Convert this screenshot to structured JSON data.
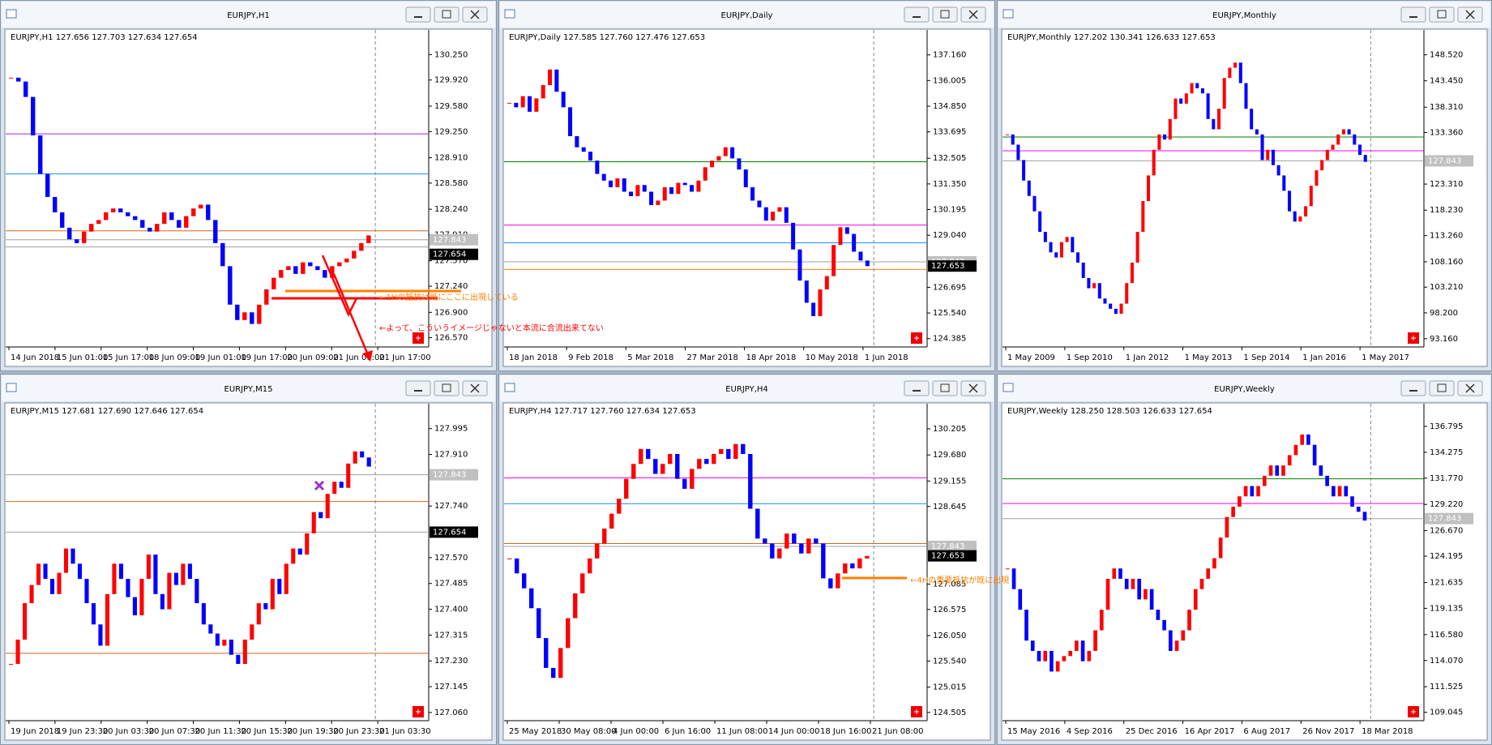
{
  "up_color": "#ff0000",
  "down_color": "#0000ff",
  "windows": [
    {
      "title": "EURJPY,H1",
      "info": "EURJPY,H1  127.656 127.703 127.634 127.654",
      "chart": {
        "type": "candlestick",
        "ylim": [
          126.45,
          130.57
        ],
        "yticks": [
          {
            "value": 130.25,
            "label": "130.250"
          },
          {
            "value": 129.92,
            "label": "129.920"
          },
          {
            "value": 129.58,
            "label": "129.580"
          },
          {
            "value": 129.25,
            "label": "129.250"
          },
          {
            "value": 128.91,
            "label": "128.910"
          },
          {
            "value": 128.58,
            "label": "128.580"
          },
          {
            "value": 128.24,
            "label": "128.240"
          },
          {
            "value": 127.91,
            "label": "127.910"
          },
          {
            "value": 127.57,
            "label": "127.570"
          },
          {
            "value": 127.24,
            "label": "127.240"
          },
          {
            "value": 126.9,
            "label": "126.900"
          },
          {
            "value": 126.57,
            "label": "126.570"
          }
        ],
        "xticks": [
          "14 Jun 2018",
          "15 Jun 01:00",
          "15 Jun 17:00",
          "18 Jun 09:00",
          "19 Jun 01:00",
          "19 Jun 17:00",
          "20 Jun 09:00",
          "21 Jun 01:00",
          "21 Jun 17:00"
        ],
        "closes": [
          129.95,
          129.9,
          129.7,
          129.2,
          128.7,
          128.4,
          128.2,
          128.0,
          127.85,
          127.8,
          127.95,
          128.05,
          128.1,
          128.2,
          128.25,
          128.2,
          128.15,
          128.1,
          128.0,
          127.95,
          128.05,
          128.2,
          128.1,
          128.0,
          128.15,
          128.25,
          128.3,
          128.1,
          127.8,
          127.5,
          127.0,
          126.8,
          126.9,
          126.75,
          127.0,
          127.2,
          127.35,
          127.45,
          127.5,
          127.4,
          127.55,
          127.5,
          127.45,
          127.35,
          127.5,
          127.55,
          127.6,
          127.7,
          127.8,
          127.9
        ],
        "levels": [
          {
            "value": 129.22,
            "color": "#a020f0"
          },
          {
            "value": 128.7,
            "color": "#1e90ff"
          },
          {
            "value": 127.96,
            "color": "#d2691e"
          },
          {
            "value": 127.843,
            "color": "#a0a0a0"
          },
          {
            "value": 127.75,
            "color": "#a0a0a0"
          }
        ],
        "price_boxes": [
          {
            "value": 127.843,
            "color": "#c0c0c0"
          },
          {
            "value": 127.654,
            "color": "#000000"
          }
        ],
        "annotations": [
          {
            "text": "←1Hの抵抗は既にここに出現している",
            "color": "#ff8000"
          },
          {
            "text": "←よって、こういうイメージじゃないと本流に合流出来てない",
            "color": "#ff0000"
          }
        ]
      }
    },
    {
      "title": "EURJPY,Daily",
      "info": "EURJPY,Daily  127.585 127.760 127.476 127.653",
      "chart": {
        "type": "candlestick",
        "ylim": [
          124.01,
          138.28
        ],
        "yticks": [
          {
            "value": 137.16,
            "label": "137.160"
          },
          136.005,
          {
            "value": 134.85,
            "label": "134.850"
          },
          133.695,
          132.505,
          {
            "value": 131.35,
            "label": "131.350"
          },
          130.195,
          {
            "value": 129.04,
            "label": "129.040"
          },
          126.695,
          {
            "value": 125.54,
            "label": "125.540"
          },
          124.385
        ],
        "xticks": [
          "18 Jan 2018",
          "9 Feb 2018",
          "5 Mar 2018",
          "27 Mar 2018",
          "18 Apr 2018",
          "10 May 2018",
          "1 Jun 2018"
        ],
        "closes": [
          135.0,
          134.8,
          135.3,
          134.6,
          135.2,
          135.8,
          136.5,
          135.5,
          134.8,
          133.5,
          133.0,
          132.8,
          132.4,
          131.8,
          131.5,
          131.2,
          131.6,
          131.0,
          130.8,
          131.3,
          131.0,
          130.4,
          130.6,
          131.2,
          130.9,
          131.4,
          131.3,
          131.0,
          131.5,
          132.1,
          132.4,
          132.6,
          133.0,
          132.5,
          132.0,
          131.2,
          130.6,
          130.3,
          129.7,
          130.1,
          130.3,
          129.6,
          128.4,
          127.0,
          126.0,
          125.4,
          126.6,
          127.2,
          128.6,
          129.4,
          129.1,
          128.3,
          127.9,
          127.65
        ],
        "levels": [
          {
            "value": 132.35,
            "color": "#008000"
          },
          {
            "value": 129.5,
            "color": "#ff00ff"
          },
          {
            "value": 128.7,
            "color": "#1e90ff"
          },
          {
            "value": 127.843,
            "color": "#a0a0a0"
          },
          {
            "value": 127.5,
            "color": "#ff8000"
          }
        ],
        "price_boxes": [
          {
            "value": 127.843,
            "color": "#c0c0c0"
          },
          {
            "value": 127.653,
            "color": "#000000"
          }
        ],
        "annotations": []
      }
    },
    {
      "title": "EURJPY,Monthly",
      "info": "EURJPY,Monthly  127.202 130.341 126.633 127.653",
      "chart": {
        "type": "candlestick",
        "ylim": [
          91.55,
          153.36
        ],
        "yticks": [
          {
            "value": 148.52,
            "label": "148.520"
          },
          {
            "value": 143.45,
            "label": "143.450"
          },
          {
            "value": 138.31,
            "label": "138.310"
          },
          {
            "value": 133.36,
            "label": "133.360"
          },
          {
            "value": 123.31,
            "label": "123.310"
          },
          {
            "value": 118.23,
            "label": "118.230"
          },
          {
            "value": 113.26,
            "label": "113.260"
          },
          {
            "value": 108.16,
            "label": "108.160"
          },
          {
            "value": 103.21,
            "label": "103.210"
          },
          {
            "value": 98.2,
            "label": "98.200"
          },
          {
            "value": 93.16,
            "label": "93.160"
          }
        ],
        "xticks": [
          "1 May 2009",
          "1 Sep 2010",
          "1 Jan 2012",
          "1 May 2013",
          "1 Sep 2014",
          "1 Jan 2016",
          "1 May 2017"
        ],
        "closes": [
          133,
          131,
          128,
          124,
          121,
          118,
          114,
          112,
          110,
          109,
          112,
          113,
          110,
          108,
          105,
          103,
          104,
          101,
          100,
          99,
          98,
          100,
          104,
          108,
          114,
          120,
          125,
          130,
          133,
          132,
          136,
          140,
          139,
          141,
          143,
          142,
          141,
          136,
          134,
          138,
          144,
          146,
          147,
          143,
          138,
          134,
          133,
          128,
          130,
          127,
          125,
          122,
          118,
          116,
          117,
          119,
          123,
          126,
          128,
          130,
          131,
          133,
          134,
          133,
          131,
          129,
          127.65
        ],
        "levels": [
          {
            "value": 132.5,
            "color": "#008000"
          },
          {
            "value": 129.8,
            "color": "#ff00ff"
          },
          {
            "value": 127.843,
            "color": "#a0a0a0"
          }
        ],
        "price_boxes": [
          {
            "value": 127.843,
            "color": "#c0c0c0"
          }
        ],
        "annotations": []
      }
    },
    {
      "title": "EURJPY,M15",
      "info": "EURJPY,M15  127.681 127.690 127.646 127.654",
      "chart": {
        "type": "candlestick",
        "ylim": [
          127.033,
          128.077
        ],
        "yticks": [
          127.995,
          {
            "value": 127.91,
            "label": "127.910"
          },
          {
            "value": 127.74,
            "label": "127.740"
          },
          {
            "value": 127.57,
            "label": "127.570"
          },
          127.485,
          {
            "value": 127.4,
            "label": "127.400"
          },
          127.315,
          {
            "value": 127.23,
            "label": "127.230"
          },
          127.145,
          {
            "value": 127.06,
            "label": "127.060"
          }
        ],
        "xticks": [
          "19 Jun 2018",
          "19 Jun 23:30",
          "20 Jun 03:30",
          "20 Jun 07:30",
          "20 Jun 11:30",
          "20 Jun 15:30",
          "20 Jun 19:30",
          "20 Jun 23:30",
          "21 Jun 03:30"
        ],
        "closes": [
          127.22,
          127.3,
          127.42,
          127.48,
          127.55,
          127.5,
          127.45,
          127.52,
          127.6,
          127.55,
          127.5,
          127.42,
          127.35,
          127.28,
          127.45,
          127.55,
          127.5,
          127.44,
          127.38,
          127.5,
          127.58,
          127.45,
          127.4,
          127.52,
          127.48,
          127.55,
          127.5,
          127.42,
          127.35,
          127.32,
          127.28,
          127.3,
          127.25,
          127.22,
          127.3,
          127.35,
          127.42,
          127.4,
          127.5,
          127.45,
          127.55,
          127.6,
          127.58,
          127.65,
          127.72,
          127.7,
          127.78,
          127.82,
          127.8,
          127.88,
          127.92,
          127.9,
          127.87
        ],
        "levels": [
          {
            "value": 127.843,
            "color": "#a0a0a0"
          },
          {
            "value": 127.755,
            "color": "#d2691e"
          },
          {
            "value": 127.654,
            "color": "#a0a0a0"
          },
          {
            "value": 127.255,
            "color": "#d2691e"
          }
        ],
        "price_boxes": [
          {
            "value": 127.843,
            "color": "#c0c0c0"
          },
          {
            "value": 127.654,
            "color": "#000000"
          }
        ],
        "annotations": []
      }
    },
    {
      "title": "EURJPY,H4",
      "info": "EURJPY,H4  127.717 127.760 127.634 127.653",
      "chart": {
        "type": "candlestick",
        "ylim": [
          124.34,
          130.71
        ],
        "yticks": [
          130.205,
          {
            "value": 129.68,
            "label": "129.680"
          },
          129.155,
          128.645,
          127.085,
          126.575,
          {
            "value": 126.05,
            "label": "126.050"
          },
          {
            "value": 125.54,
            "label": "125.540"
          },
          125.015,
          124.505
        ],
        "xticks": [
          "25 May 2018",
          "30 May 08:00",
          "4 Jun 00:00",
          "6 Jun 16:00",
          "11 Jun 08:00",
          "14 Jun 00:00",
          "18 Jun 16:00",
          "21 Jun 08:00"
        ],
        "closes": [
          127.6,
          127.3,
          127.0,
          126.6,
          126.0,
          125.4,
          125.2,
          125.8,
          126.4,
          126.9,
          127.3,
          127.6,
          127.9,
          128.2,
          128.5,
          128.8,
          129.2,
          129.5,
          129.8,
          129.6,
          129.3,
          129.5,
          129.7,
          129.2,
          129.0,
          129.4,
          129.6,
          129.5,
          129.7,
          129.8,
          129.6,
          129.9,
          129.7,
          128.6,
          128.0,
          127.9,
          127.6,
          127.8,
          128.1,
          127.9,
          127.7,
          128.0,
          127.9,
          127.2,
          127.0,
          127.3,
          127.5,
          127.4,
          127.6,
          127.65
        ],
        "levels": [
          {
            "value": 129.22,
            "color": "#ff00ff"
          },
          {
            "value": 128.7,
            "color": "#1e90ff"
          },
          {
            "value": 127.9,
            "color": "#d2691e"
          },
          {
            "value": 127.843,
            "color": "#a0a0a0"
          }
        ],
        "price_boxes": [
          {
            "value": 127.843,
            "color": "#c0c0c0"
          },
          {
            "value": 127.653,
            "color": "#000000"
          }
        ],
        "annotations": [
          {
            "text": "←4Hの重要抵抗が既に出現",
            "color": "#ff8000"
          }
        ]
      }
    },
    {
      "title": "EURJPY,Weekly",
      "info": "EURJPY,Weekly  128.250 128.503 126.633 127.654",
      "chart": {
        "type": "candlestick",
        "ylim": [
          108.23,
          138.99
        ],
        "yticks": [
          136.795,
          134.275,
          {
            "value": 131.77,
            "label": "131.770"
          },
          {
            "value": 129.22,
            "label": "129.220"
          },
          {
            "value": 126.67,
            "label": "126.670"
          },
          124.195,
          121.635,
          119.135,
          {
            "value": 116.58,
            "label": "116.580"
          },
          {
            "value": 114.07,
            "label": "114.070"
          },
          111.525,
          109.045
        ],
        "xticks": [
          "15 May 2016",
          "4 Sep 2016",
          "25 Dec 2016",
          "16 Apr 2017",
          "6 Aug 2017",
          "26 Nov 2017",
          "18 Mar 2018"
        ],
        "closes": [
          123,
          121,
          119,
          116,
          115,
          114,
          115,
          113,
          114,
          114.5,
          115,
          116,
          114,
          115,
          117,
          119,
          122,
          123,
          122,
          121,
          122,
          120,
          121,
          119,
          118,
          117,
          115,
          116,
          117,
          119,
          121,
          122,
          123,
          124,
          126,
          128,
          129,
          130,
          131,
          130,
          131,
          132,
          133,
          132,
          133,
          134,
          135,
          136,
          135,
          133,
          132,
          131,
          130,
          131,
          130,
          129,
          128.5,
          127.65
        ],
        "levels": [
          {
            "value": 131.7,
            "color": "#008000"
          },
          {
            "value": 129.3,
            "color": "#ff00ff"
          },
          {
            "value": 127.843,
            "color": "#a0a0a0"
          }
        ],
        "price_boxes": [
          {
            "value": 127.843,
            "color": "#c0c0c0"
          }
        ],
        "annotations": []
      }
    }
  ]
}
